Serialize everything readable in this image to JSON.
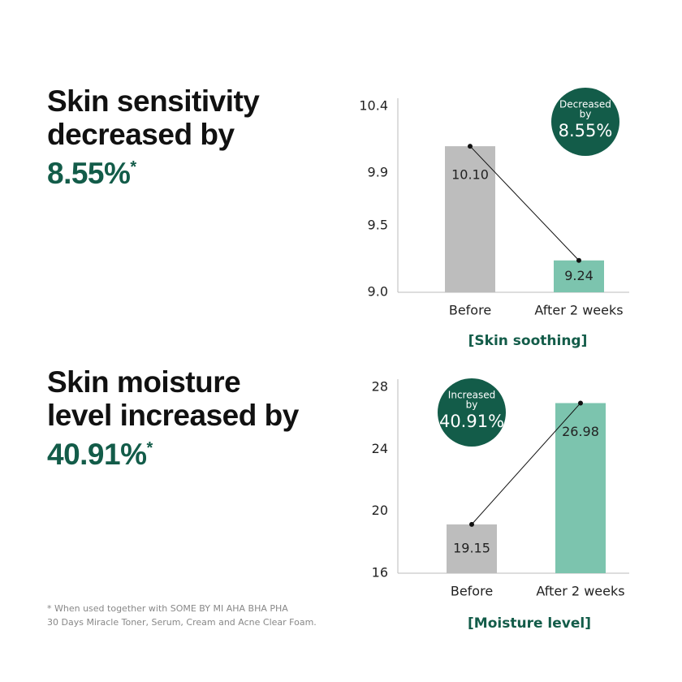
{
  "headlines": [
    {
      "lines": [
        "Skin sensitivity",
        "decreased by"
      ],
      "highlight": "8.55%",
      "mark": "*"
    },
    {
      "lines": [
        "Skin moisture",
        "level increased by"
      ],
      "highlight": "40.91%",
      "mark": "*"
    }
  ],
  "chart_data": [
    {
      "type": "bar",
      "categories": [
        "Before",
        "After 2 weeks"
      ],
      "values": [
        10.1,
        9.24
      ],
      "value_labels": [
        "10.10",
        "9.24"
      ],
      "colors": [
        "#bdbdbd",
        "#7cc4ae"
      ],
      "ylim": [
        9.0,
        10.4
      ],
      "yticks": [
        {
          "value": 9.0,
          "label": "9.0"
        },
        9.5,
        9.9,
        10.4
      ],
      "subtitle": "[Skin soothing]",
      "badge": [
        "Decreased",
        "by",
        "8.55%"
      ]
    },
    {
      "type": "bar",
      "categories": [
        "Before",
        "After 2 weeks"
      ],
      "values": [
        19.15,
        26.98
      ],
      "colors": [
        "#bdbdbd",
        "#7cc4ae"
      ],
      "ylim": [
        16,
        28
      ],
      "yticks": [
        16,
        20,
        24,
        28
      ],
      "subtitle": "[Moisture level]",
      "badge": [
        "Increased",
        "by",
        "40.91%"
      ]
    }
  ],
  "footnote": [
    "* When used together with SOME BY MI AHA BHA PHA",
    "30 Days Miracle Toner, Serum, Cream and Acne Clear Foam."
  ]
}
